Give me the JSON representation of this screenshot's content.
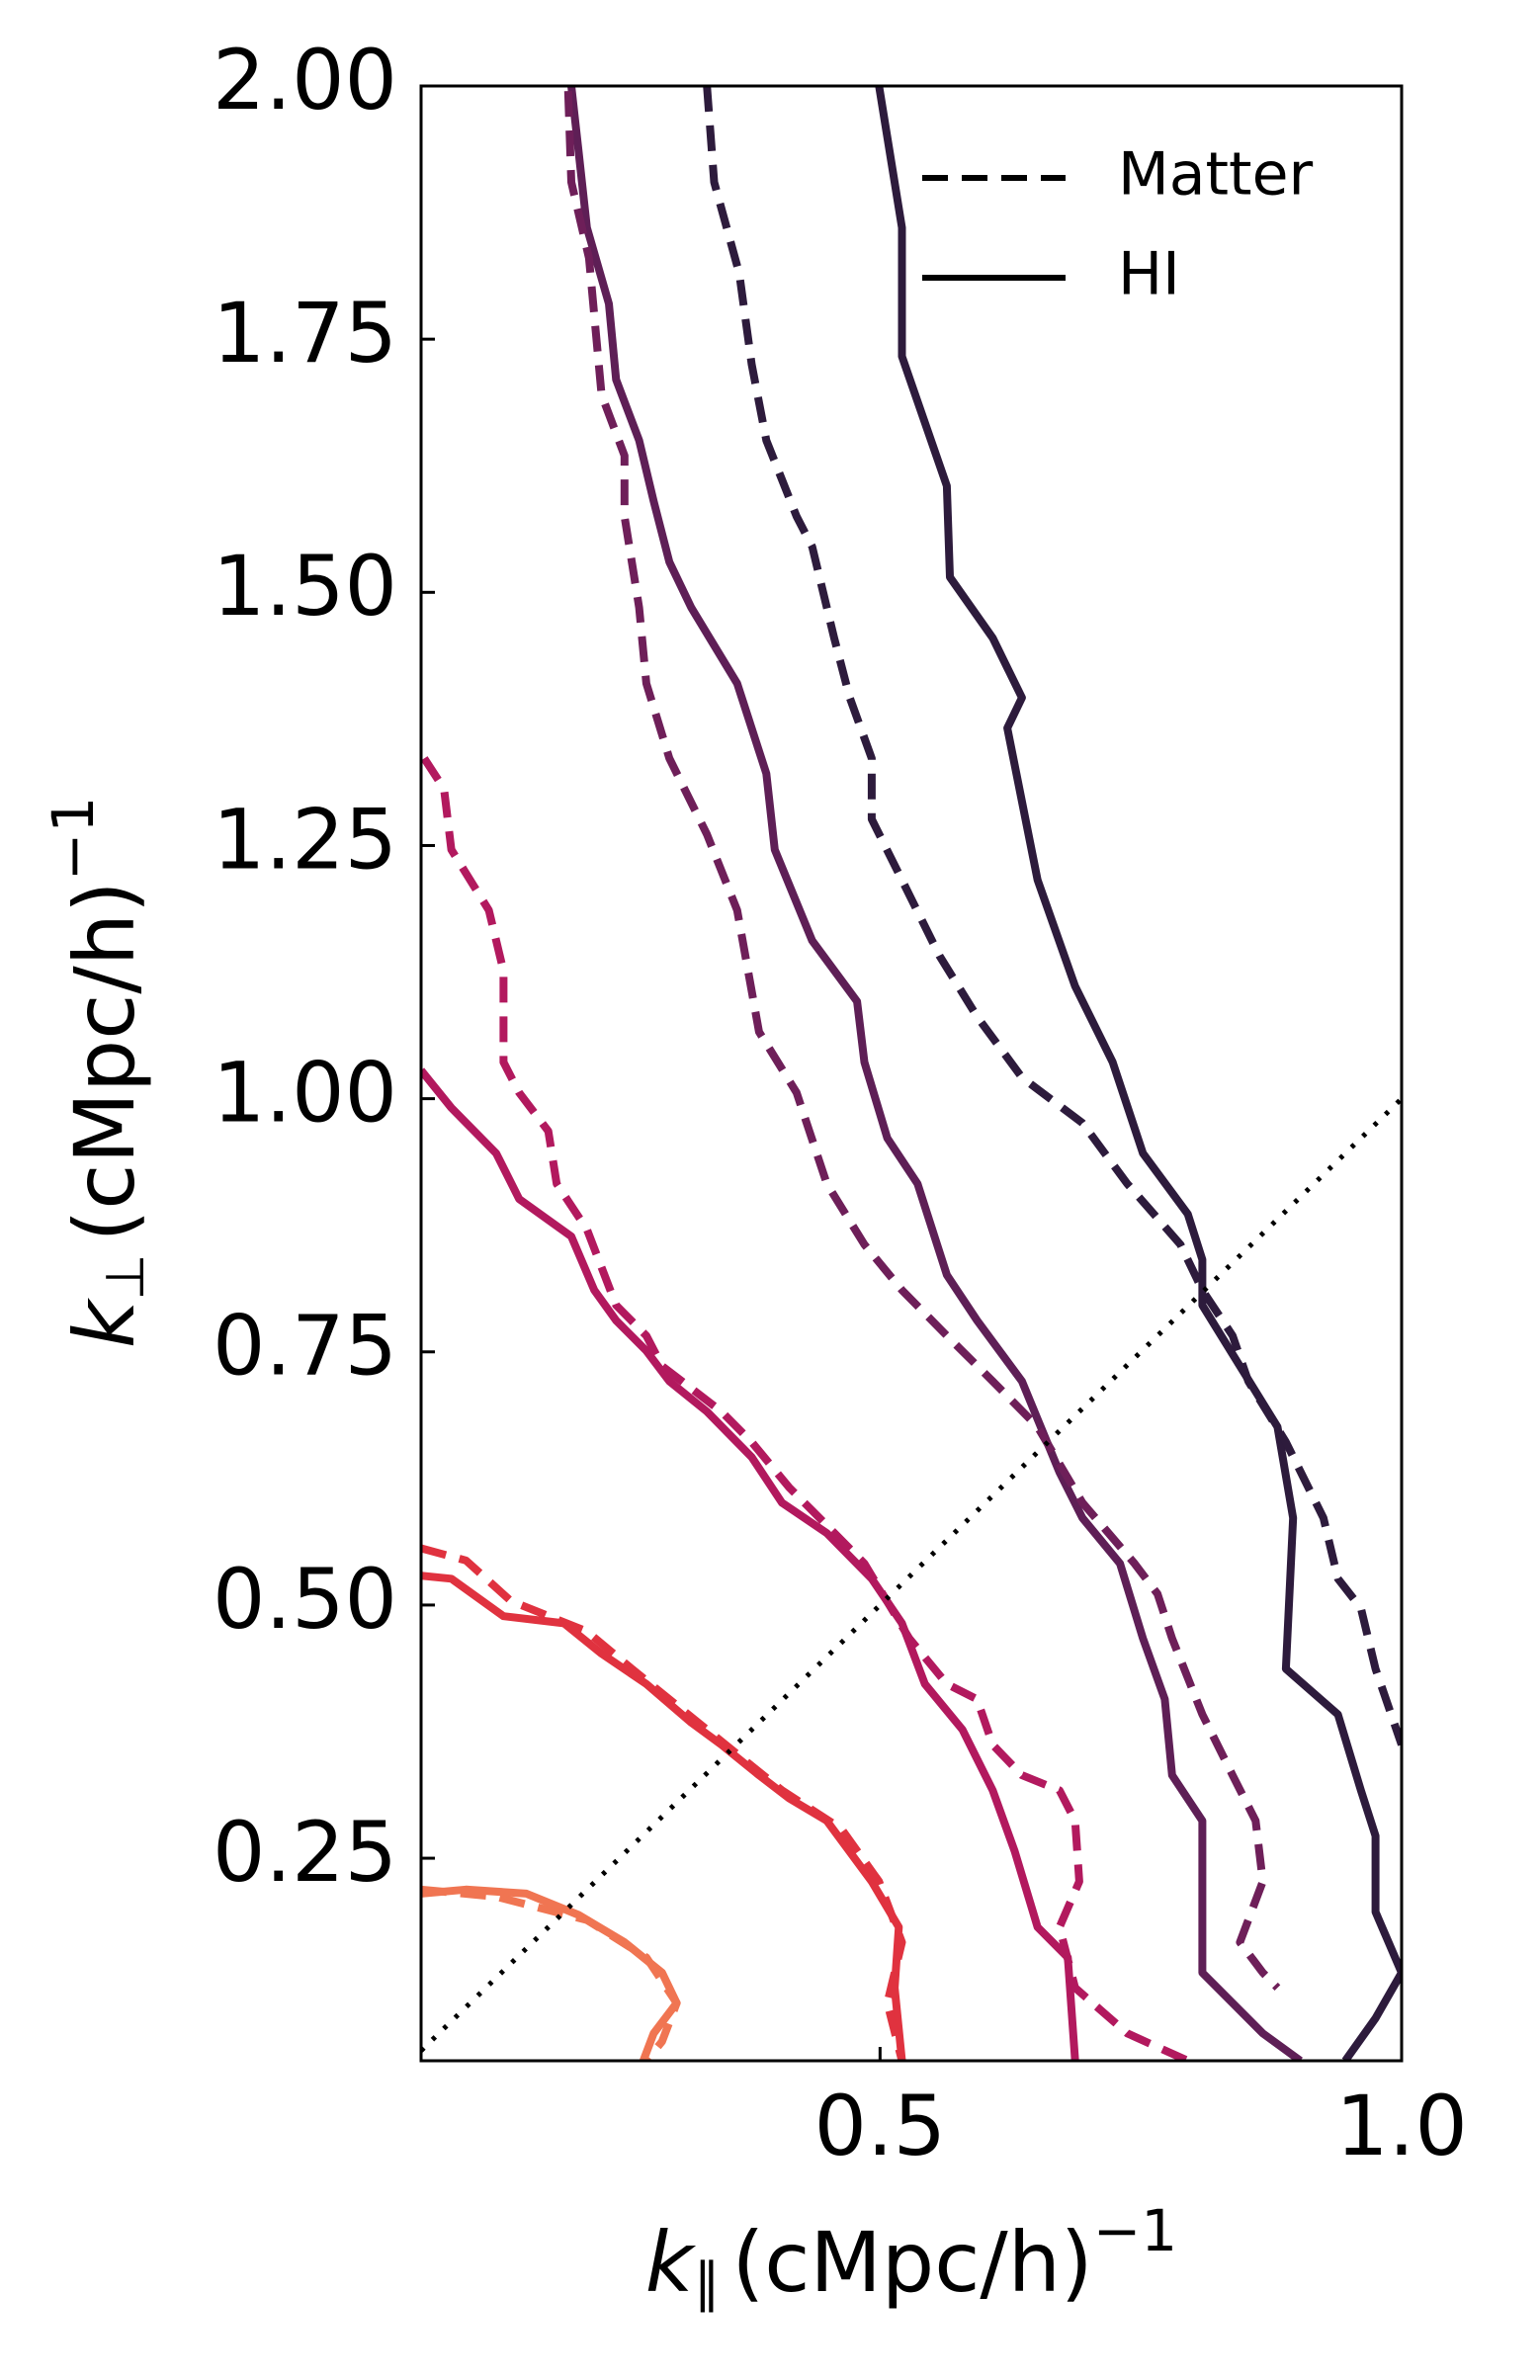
{
  "chart_data": {
    "type": "contour",
    "xlabel": {
      "symbol": "k",
      "subscript": "∥",
      "unit": "(cMpc/h)",
      "exponent": "−1"
    },
    "ylabel": {
      "symbol": "k",
      "subscript": "⊥",
      "unit": "(cMpc/h)",
      "exponent": "−1"
    },
    "xlim": [
      0.06,
      1.0
    ],
    "ylim": [
      0.05,
      2.0
    ],
    "xticks": [
      0.5,
      {
        "value": 1,
        "label": "1.0"
      }
    ],
    "yticks": [
      0.25,
      {
        "value": 0.5,
        "label": "0.50"
      },
      0.75,
      {
        "value": 1,
        "label": "1.00"
      },
      1.25,
      {
        "value": 1.5,
        "label": "1.50"
      },
      1.75,
      {
        "value": 2,
        "label": "2.00"
      }
    ],
    "grid": false,
    "legend": {
      "loc": "upper right",
      "entries": [
        {
          "label": "Matter",
          "linestyle": "dashed",
          "color": "#000000"
        },
        {
          "label": "HI",
          "linestyle": "solid",
          "color": "#000000"
        }
      ]
    },
    "reference_line": {
      "x": [
        0.06,
        1.0
      ],
      "y": [
        0.06,
        1.0
      ],
      "linestyle": "dotted",
      "color": "#000000"
    },
    "series": [
      {
        "color": "#2d1b3c",
        "linestyle": "solid",
        "x": [
          0.499,
          0.521,
          0.521,
          0.564,
          0.567,
          0.608,
          0.636,
          0.622,
          0.651,
          0.687,
          0.723,
          0.752,
          0.795,
          0.809,
          0.809,
          0.845,
          0.881,
          0.896,
          0.889,
          0.939,
          0.961,
          0.975,
          0.975,
          1.0,
          0.975,
          0.946
        ],
        "y": [
          2.0,
          1.86,
          1.733,
          1.605,
          1.515,
          1.455,
          1.396,
          1.366,
          1.216,
          1.111,
          1.036,
          0.946,
          0.886,
          0.841,
          0.796,
          0.736,
          0.676,
          0.586,
          0.437,
          0.392,
          0.317,
          0.272,
          0.197,
          0.137,
          0.092,
          0.05
        ]
      },
      {
        "color": "#2d1b3c",
        "linestyle": "dashed",
        "x": [
          0.334,
          0.341,
          0.365,
          0.377,
          0.391,
          0.42,
          0.435,
          0.456,
          0.471,
          0.492,
          0.492,
          0.521,
          0.557,
          0.593,
          0.636,
          0.694,
          0.737,
          0.788,
          0.809,
          0.838,
          0.853,
          0.889,
          0.925,
          0.939,
          0.961,
          0.975,
          1.0
        ],
        "y": [
          2.0,
          1.905,
          1.815,
          1.725,
          1.65,
          1.575,
          1.545,
          1.455,
          1.396,
          1.336,
          1.276,
          1.216,
          1.141,
          1.081,
          1.021,
          0.976,
          0.916,
          0.856,
          0.811,
          0.766,
          0.721,
          0.661,
          0.586,
          0.526,
          0.497,
          0.437,
          0.362
        ]
      },
      {
        "color": "#5e1f56",
        "linestyle": "solid",
        "x": [
          0.204,
          0.211,
          0.219,
          0.24,
          0.247,
          0.269,
          0.283,
          0.298,
          0.319,
          0.363,
          0.391,
          0.399,
          0.435,
          0.478,
          0.485,
          0.507,
          0.536,
          0.564,
          0.593,
          0.636,
          0.672,
          0.694,
          0.73,
          0.752,
          0.773,
          0.78,
          0.809,
          0.809,
          0.867,
          0.903
        ],
        "y": [
          2.0,
          1.935,
          1.86,
          1.785,
          1.71,
          1.65,
          1.59,
          1.53,
          1.485,
          1.41,
          1.321,
          1.246,
          1.156,
          1.096,
          1.036,
          0.961,
          0.916,
          0.826,
          0.781,
          0.721,
          0.631,
          0.586,
          0.541,
          0.467,
          0.407,
          0.332,
          0.287,
          0.137,
          0.077,
          0.05
        ]
      },
      {
        "color": "#6e1f59",
        "linestyle": "dashed",
        "x": [
          0.201,
          0.204,
          0.221,
          0.233,
          0.255,
          0.255,
          0.269,
          0.276,
          0.298,
          0.334,
          0.363,
          0.384,
          0.42,
          0.449,
          0.485,
          0.521,
          0.564,
          0.608,
          0.651,
          0.694,
          0.744,
          0.766,
          0.78,
          0.809,
          0.838,
          0.86,
          0.867,
          0.845,
          0.867,
          0.881
        ],
        "y": [
          1.995,
          1.905,
          1.83,
          1.695,
          1.635,
          1.575,
          1.485,
          1.41,
          1.336,
          1.261,
          1.186,
          1.066,
          1.006,
          0.916,
          0.856,
          0.811,
          0.766,
          0.721,
          0.676,
          0.601,
          0.541,
          0.511,
          0.467,
          0.392,
          0.332,
          0.287,
          0.227,
          0.167,
          0.137,
          0.122
        ]
      },
      {
        "color": "#b2195e",
        "linestyle": "solid",
        "x": [
          0.06,
          0.089,
          0.132,
          0.154,
          0.204,
          0.226,
          0.247,
          0.276,
          0.298,
          0.334,
          0.377,
          0.406,
          0.449,
          0.492,
          0.521,
          0.543,
          0.579,
          0.608,
          0.629,
          0.651,
          0.68,
          0.687
        ],
        "y": [
          1.028,
          0.991,
          0.946,
          0.901,
          0.864,
          0.811,
          0.781,
          0.751,
          0.721,
          0.691,
          0.646,
          0.601,
          0.571,
          0.526,
          0.482,
          0.422,
          0.377,
          0.317,
          0.257,
          0.182,
          0.152,
          0.05
        ]
      },
      {
        "color": "#b2195e",
        "linestyle": "dashed",
        "x": [
          0.063,
          0.082,
          0.089,
          0.125,
          0.139,
          0.139,
          0.154,
          0.182,
          0.19,
          0.219,
          0.247,
          0.276,
          0.291,
          0.348,
          0.377,
          0.413,
          0.442,
          0.485,
          0.528,
          0.564,
          0.593,
          0.608,
          0.636,
          0.672,
          0.687,
          0.691,
          0.672,
          0.687,
          0.737,
          0.795
        ],
        "y": [
          1.336,
          1.306,
          1.246,
          1.186,
          1.126,
          1.036,
          1.006,
          0.968,
          0.916,
          0.871,
          0.796,
          0.766,
          0.736,
          0.691,
          0.661,
          0.616,
          0.586,
          0.541,
          0.467,
          0.422,
          0.407,
          0.362,
          0.332,
          0.317,
          0.287,
          0.227,
          0.182,
          0.122,
          0.077,
          0.05
        ]
      },
      {
        "color": "#e0323f",
        "linestyle": "solid",
        "x": [
          0.06,
          0.089,
          0.139,
          0.197,
          0.233,
          0.276,
          0.319,
          0.348,
          0.384,
          0.413,
          0.449,
          0.492,
          0.518,
          0.514,
          0.521
        ],
        "y": [
          0.529,
          0.526,
          0.489,
          0.482,
          0.452,
          0.422,
          0.384,
          0.362,
          0.332,
          0.309,
          0.287,
          0.227,
          0.182,
          0.122,
          0.05
        ]
      },
      {
        "color": "#e0323f",
        "linestyle": "dashed",
        "x": [
          0.06,
          0.103,
          0.146,
          0.219,
          0.262,
          0.334,
          0.406,
          0.463,
          0.499,
          0.521,
          0.507,
          0.521
        ],
        "y": [
          0.556,
          0.544,
          0.504,
          0.474,
          0.437,
          0.377,
          0.317,
          0.279,
          0.227,
          0.167,
          0.107,
          0.05
        ]
      },
      {
        "color": "#f07552",
        "linestyle": "solid",
        "x": [
          0.06,
          0.103,
          0.161,
          0.211,
          0.255,
          0.291,
          0.305,
          0.283,
          0.273
        ],
        "y": [
          0.215,
          0.219,
          0.215,
          0.194,
          0.167,
          0.137,
          0.107,
          0.077,
          0.05
        ]
      },
      {
        "color": "#f07552",
        "linestyle": "dashed",
        "x": [
          0.06,
          0.132,
          0.219,
          0.276,
          0.305,
          0.291,
          0.276
        ],
        "y": [
          0.219,
          0.212,
          0.189,
          0.152,
          0.107,
          0.069,
          0.05
        ]
      }
    ]
  }
}
